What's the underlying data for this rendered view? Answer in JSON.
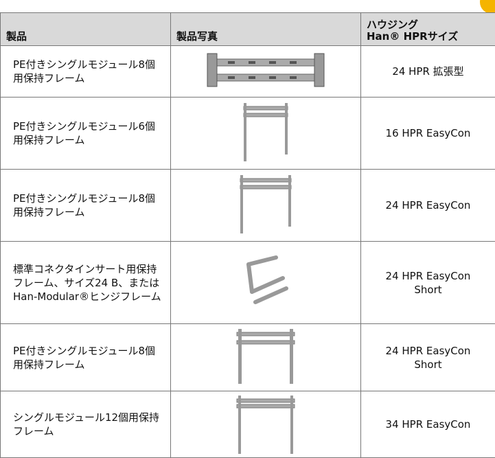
{
  "table": {
    "header": [
      "製品",
      "製品写真",
      [
        "ハウジング",
        "Han® HPRサイズ"
      ]
    ],
    "rows": [
      [
        "PE付きシングルモジュール8個用保持フレーム",
        "24 HPR 拡張型"
      ],
      [
        "PE付きシングルモジュール6個用保持フレーム",
        "16 HPR EasyCon"
      ],
      [
        "PE付きシングルモジュール8個用保持フレーム",
        "24 HPR EasyCon"
      ],
      [
        "標準コネクタインサート用保持フレーム、サイズ24 B、またはHan-Modular®ヒンジフレーム",
        "24 HPR EasyCon Short"
      ],
      [
        "PE付きシングルモジュール8個用保持フレーム",
        "24 HPR EasyCon Short"
      ],
      [
        "シングルモジュール12個用保持フレーム",
        "34 HPR EasyCon"
      ]
    ]
  }
}
